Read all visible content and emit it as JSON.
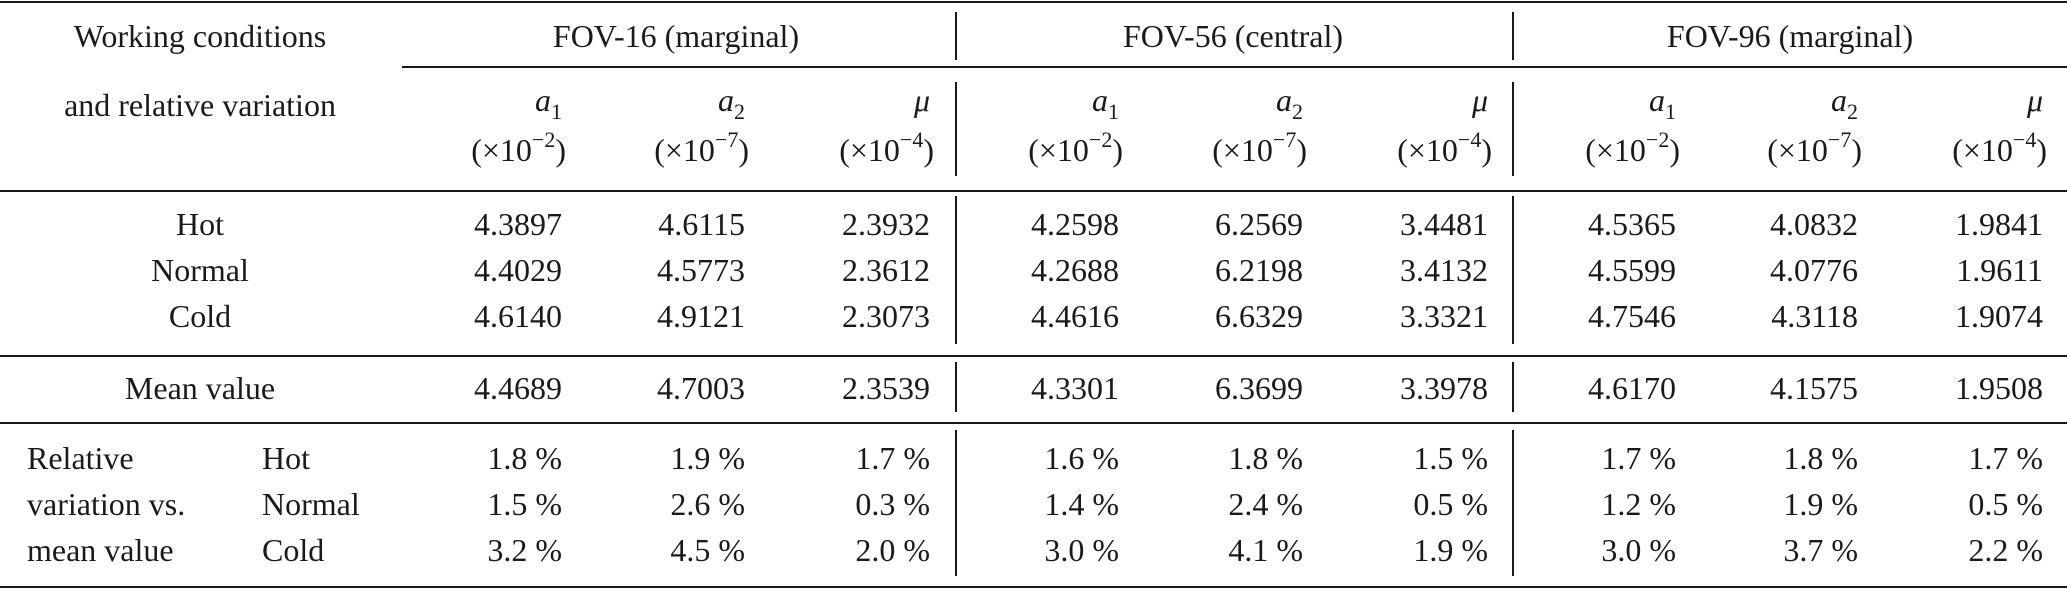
{
  "header": {
    "working_line1": "Working conditions",
    "working_line2": "and relative variation",
    "groups": [
      "FOV-16 (marginal)",
      "FOV-56 (central)",
      "FOV-96 (marginal)"
    ],
    "params": [
      {
        "sym": "a",
        "sub": "1",
        "scale_pre": "(×10",
        "exp": "−2",
        "scale_post": ")"
      },
      {
        "sym": "a",
        "sub": "2",
        "scale_pre": "(×10",
        "exp": "−7",
        "scale_post": ")"
      },
      {
        "sym": "μ",
        "sub": "",
        "scale_pre": "(×10",
        "exp": "−4",
        "scale_post": ")"
      }
    ]
  },
  "conditions": [
    {
      "label": "Hot",
      "values": [
        "4.3897",
        "4.6115",
        "2.3932",
        "4.2598",
        "6.2569",
        "3.4481",
        "4.5365",
        "4.0832",
        "1.9841"
      ]
    },
    {
      "label": "Normal",
      "values": [
        "4.4029",
        "4.5773",
        "2.3612",
        "4.2688",
        "6.2198",
        "3.4132",
        "4.5599",
        "4.0776",
        "1.9611"
      ]
    },
    {
      "label": "Cold",
      "values": [
        "4.6140",
        "4.9121",
        "2.3073",
        "4.4616",
        "6.6329",
        "3.3321",
        "4.7546",
        "4.3118",
        "1.9074"
      ]
    }
  ],
  "mean": {
    "label": "Mean value",
    "values": [
      "4.4689",
      "4.7003",
      "2.3539",
      "4.3301",
      "6.3699",
      "3.3978",
      "4.6170",
      "4.1575",
      "1.9508"
    ]
  },
  "relative": {
    "labels": [
      "Relative",
      "variation vs.",
      "mean value"
    ],
    "rows": [
      {
        "label": "Hot",
        "values": [
          "1.8 %",
          "1.9 %",
          "1.7 %",
          "1.6 %",
          "1.8 %",
          "1.5 %",
          "1.7 %",
          "1.8 %",
          "1.7 %"
        ]
      },
      {
        "label": "Normal",
        "values": [
          "1.5 %",
          "2.6 %",
          "0.3 %",
          "1.4 %",
          "2.4 %",
          "0.5 %",
          "1.2 %",
          "1.9 %",
          "0.5 %"
        ]
      },
      {
        "label": "Cold",
        "values": [
          "3.2 %",
          "4.5 %",
          "2.0 %",
          "3.0 %",
          "4.1 %",
          "1.9 %",
          "3.0 %",
          "3.7 %",
          "2.2 %"
        ]
      }
    ]
  }
}
